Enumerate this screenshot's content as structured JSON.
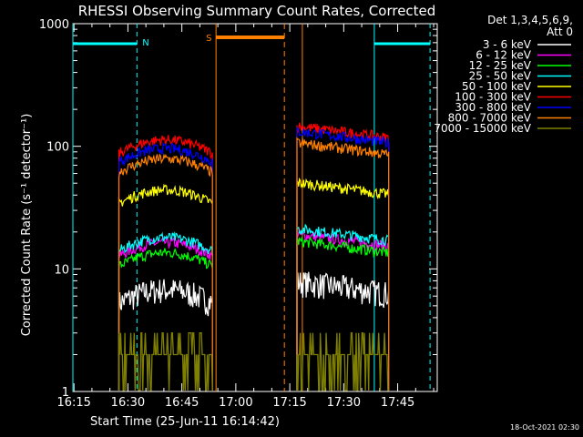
{
  "chart_data": {
    "type": "line",
    "title": "RHESSI Observing Summary Count Rates, Corrected",
    "xlabel": "Start Time (25-Jun-11 16:14:42)",
    "ylabel": "Corrected Count Rate (s⁻¹ detector⁻¹)",
    "x_start": "16:14:42",
    "xlim": [
      "16:14:42",
      "17:56:00"
    ],
    "ylim": [
      1,
      1000
    ],
    "y_scale": "log",
    "x_ticks": [
      "16:15",
      "16:30",
      "16:45",
      "17:00",
      "17:15",
      "17:30",
      "17:45"
    ],
    "y_ticks": [
      "1",
      "10",
      "100",
      "1000"
    ],
    "legend": {
      "header": [
        "Det 1,3,4,5,6,9,",
        "Att 0"
      ],
      "placement": "right"
    },
    "series": [
      {
        "name": "3 - 6 keV",
        "color": "#ffffff",
        "seg1": 6,
        "seg2": 7
      },
      {
        "name": "6 - 12 keV",
        "color": "#ff00ff",
        "seg1": 14.5,
        "seg2": 17
      },
      {
        "name": "12 - 25 keV",
        "color": "#00ff00",
        "seg1": 12,
        "seg2": 15
      },
      {
        "name": "25 - 50 keV",
        "color": "#00ffff",
        "seg1": 16,
        "seg2": 19
      },
      {
        "name": "50 - 100 keV",
        "color": "#ffff00",
        "seg1": 39,
        "seg2": 45
      },
      {
        "name": "100 - 300 keV",
        "color": "#ff0000",
        "seg1": 100,
        "seg2": 130
      },
      {
        "name": "300 - 800 keV",
        "color": "#0000ff",
        "seg1": 85,
        "seg2": 118
      },
      {
        "name": "800 - 7000 keV",
        "color": "#ff8000",
        "seg1": 70,
        "seg2": 95
      },
      {
        "name": "7000 - 15000 keV",
        "color": "#808000",
        "seg1": 2,
        "seg2": 2
      }
    ],
    "observing_segments": [
      [
        "16:27:30",
        "16:53:30"
      ],
      [
        "17:17:00",
        "17:42:30"
      ]
    ],
    "night_markers": {
      "label": "N",
      "color": "#00ffff",
      "bars": [
        [
          "16:14:42",
          "16:32:30"
        ],
        [
          "17:38:30",
          "17:54:00"
        ]
      ]
    },
    "saa_markers": {
      "label": "S",
      "color": "#ff8000",
      "bars": [
        [
          "16:54:30",
          "17:13:30"
        ]
      ]
    }
  },
  "footer_timestamp": "18-Oct-2021 02:30"
}
